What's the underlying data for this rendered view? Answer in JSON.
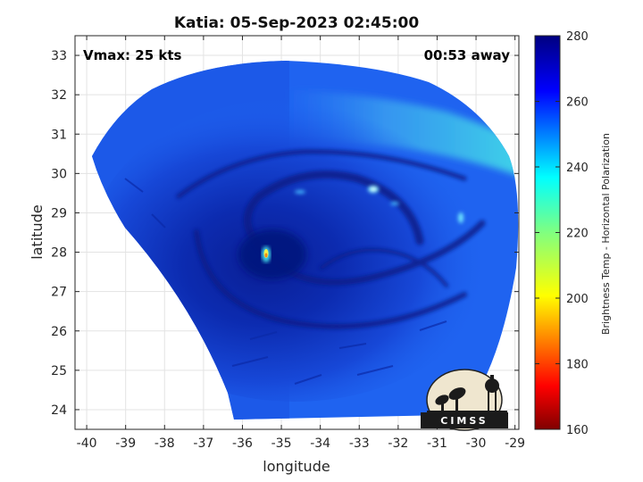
{
  "chart_data": {
    "type": "heatmap",
    "title": "Katia: 05-Sep-2023 02:45:00",
    "xlabel": "longitude",
    "ylabel": "latitude",
    "xlim": [
      -40.3,
      -28.9
    ],
    "ylim": [
      23.5,
      33.5
    ],
    "x_ticks": [
      -40,
      -39,
      -38,
      -37,
      -36,
      -35,
      -34,
      -33,
      -32,
      -31,
      -30,
      -29
    ],
    "y_ticks": [
      24,
      25,
      26,
      27,
      28,
      29,
      30,
      31,
      32,
      33
    ],
    "grid": true,
    "annotations": {
      "vmax": "Vmax: 25 kts",
      "time_away": "00:53 away"
    },
    "colorbar": {
      "label": "Brightness Temp - Horizontal Polarization",
      "range": [
        160,
        280
      ],
      "ticks": [
        160,
        180,
        200,
        220,
        240,
        260,
        280
      ],
      "colormap": "jet"
    },
    "storm_center": {
      "lon": -35.4,
      "lat": 27.9
    },
    "features": [
      {
        "name": "warm band",
        "lon": -31.5,
        "lat": 30.8,
        "value": 245
      },
      {
        "name": "convective cell",
        "lon": -32.5,
        "lat": 29.6,
        "value": 232
      },
      {
        "name": "convective cell",
        "lon": -30.3,
        "lat": 28.8,
        "value": 235
      },
      {
        "name": "convective cell",
        "lon": -35.4,
        "lat": 27.85,
        "value": 200
      }
    ],
    "logo": "CIMSS"
  },
  "colors": {
    "background_field": "#1f63f0",
    "inner_field": "#0d2fb8",
    "core": "#061a86",
    "warm_band": "#31c5ee"
  }
}
